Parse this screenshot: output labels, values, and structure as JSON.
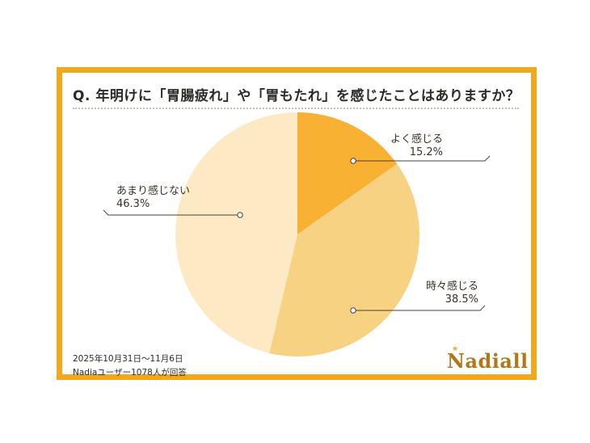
{
  "question": "Q. 年明けに「胃腸疲れ」や「胃もたれ」を感じたことはありますか？",
  "footnote": {
    "date_range": "2025年10月31日～11月6日",
    "respondents": "Nadiaユーザー1078人が回答"
  },
  "brand": {
    "logo_text": "Nadia",
    "logo_mark": "ll",
    "accent_color": "#f0a81e"
  },
  "chart_data": {
    "type": "pie",
    "title": "Q. 年明けに「胃腸疲れ」や「胃もたれ」を感じたことはありますか？",
    "slices": [
      {
        "label": "よく感じる",
        "value": 15.2,
        "display": "15.2%",
        "color": "#f9b133"
      },
      {
        "label": "時々感じる",
        "value": 38.5,
        "display": "38.5%",
        "color": "#f8d283"
      },
      {
        "label": "あまり感じない",
        "value": 46.3,
        "display": "46.3%",
        "color": "#fdeac4"
      }
    ],
    "start_angle": "12 o'clock",
    "direction": "clockwise"
  }
}
